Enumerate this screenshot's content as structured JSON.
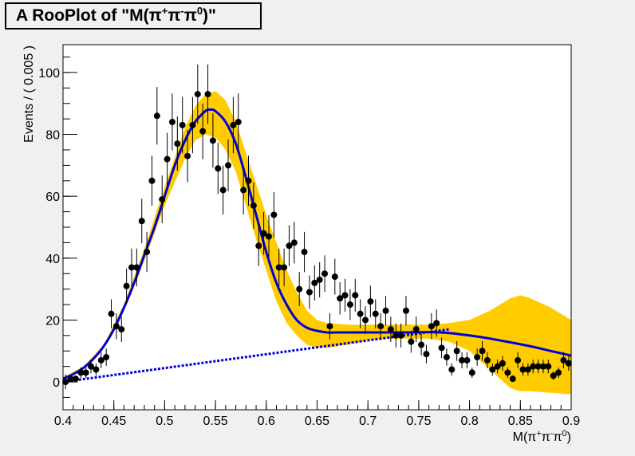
{
  "chart_data": {
    "type": "scatter",
    "title": "A RooPlot of \"M(π⁺π⁻π⁰)\"",
    "title_parts": [
      "A RooPlot of \"M(π",
      "+",
      "π",
      "-",
      "π",
      "0",
      ")\""
    ],
    "xlabel": "M(π⁺π⁻π⁰)",
    "xlabel_parts": [
      "M(π",
      "+",
      "π",
      "-",
      "π",
      "0",
      ")"
    ],
    "ylabel": "Events / ( 0.005 )",
    "xlim": [
      0.4,
      0.9
    ],
    "ylim": [
      -9,
      109
    ],
    "xticks": [
      "0.4",
      "0.45",
      "0.5",
      "0.55",
      "0.6",
      "0.65",
      "0.7",
      "0.75",
      "0.8",
      "0.85",
      "0.9"
    ],
    "yticks": [
      "0",
      "20",
      "40",
      "60",
      "80",
      "100"
    ],
    "grid": false,
    "colors": {
      "data": "#000000",
      "fit": "#0000d8",
      "band": "#ffcc00",
      "frame": "#000000",
      "background": "#f0f0f0",
      "plot_background": "#ffffff"
    },
    "series": [
      {
        "kind": "data-points-with-errors",
        "x": [
          0.4025,
          0.4075,
          0.4125,
          0.4175,
          0.4225,
          0.4275,
          0.4325,
          0.4375,
          0.4425,
          0.4475,
          0.4525,
          0.4575,
          0.4625,
          0.4675,
          0.4725,
          0.4775,
          0.4825,
          0.4875,
          0.4925,
          0.4975,
          0.5025,
          0.5075,
          0.5125,
          0.5175,
          0.5225,
          0.5275,
          0.5325,
          0.5375,
          0.5425,
          0.5475,
          0.5525,
          0.5575,
          0.5625,
          0.5675,
          0.5725,
          0.5775,
          0.5825,
          0.5875,
          0.5925,
          0.5975,
          0.6025,
          0.6075,
          0.6125,
          0.6175,
          0.6225,
          0.6275,
          0.6325,
          0.6375,
          0.6425,
          0.6475,
          0.6525,
          0.6575,
          0.6625,
          0.6675,
          0.6725,
          0.6775,
          0.6825,
          0.6875,
          0.6925,
          0.6975,
          0.7025,
          0.7075,
          0.7125,
          0.7175,
          0.7225,
          0.7275,
          0.7325,
          0.7375,
          0.7425,
          0.7475,
          0.7525,
          0.7575,
          0.7625,
          0.7675,
          0.7725,
          0.7775,
          0.7825,
          0.7875,
          0.7925,
          0.7975,
          0.8025,
          0.8075,
          0.8125,
          0.8175,
          0.8225,
          0.8275,
          0.8325,
          0.8375,
          0.8425,
          0.8475,
          0.8525,
          0.8575,
          0.8625,
          0.8675,
          0.8725,
          0.8775,
          0.8825,
          0.8875,
          0.8925,
          0.8975
        ],
        "y": [
          0,
          1,
          1,
          3,
          3,
          5,
          4,
          7,
          8,
          22,
          18,
          17,
          31,
          37,
          37,
          52,
          42,
          65,
          86,
          59,
          72,
          84,
          77,
          83,
          73,
          83,
          93,
          81,
          93,
          78,
          69,
          62,
          70,
          83,
          84,
          62,
          65,
          57,
          44,
          48,
          47,
          54,
          37,
          37,
          44,
          45,
          30,
          42,
          29,
          32,
          33,
          35,
          18,
          34,
          27,
          28,
          25,
          28,
          22,
          20,
          26,
          22,
          18,
          23,
          17,
          15,
          15,
          23,
          13,
          17,
          12,
          9,
          18,
          19,
          11,
          8,
          4,
          10,
          7,
          7,
          3,
          8,
          10,
          7,
          4,
          5,
          6,
          3,
          1,
          7,
          4,
          4,
          5,
          5,
          5,
          5,
          2,
          3,
          7,
          6
        ],
        "err": [
          2.4,
          1,
          1,
          1.7,
          1.7,
          2.2,
          2,
          2.6,
          2.8,
          4.7,
          4.2,
          4.1,
          5.6,
          6.1,
          6.1,
          7.2,
          6.5,
          8.1,
          9.3,
          7.7,
          8.5,
          9.2,
          8.8,
          9.1,
          8.5,
          9.1,
          9.6,
          9,
          9.6,
          8.8,
          8.3,
          7.9,
          8.4,
          9.1,
          9.2,
          7.9,
          8.1,
          7.5,
          6.6,
          6.9,
          6.9,
          7.3,
          6.1,
          6.1,
          6.6,
          6.7,
          5.5,
          6.5,
          5.4,
          5.7,
          5.7,
          5.9,
          4.2,
          5.8,
          5.2,
          5.3,
          5,
          5.3,
          4.7,
          4.5,
          5.1,
          4.7,
          4.2,
          4.8,
          4.1,
          3.9,
          3.9,
          4.8,
          3.6,
          4.1,
          3.5,
          3,
          4.2,
          4.4,
          3.3,
          2.8,
          2,
          3.2,
          2.6,
          2.6,
          1.7,
          2.8,
          3.2,
          2.6,
          2,
          2.2,
          2.4,
          1.7,
          1,
          2.6,
          2,
          2,
          2.2,
          2.2,
          2.2,
          2.2,
          1.4,
          1.7,
          2.6,
          2.4
        ]
      },
      {
        "kind": "fit-curve",
        "x": [
          0.4,
          0.41,
          0.42,
          0.43,
          0.44,
          0.45,
          0.46,
          0.47,
          0.48,
          0.49,
          0.5,
          0.51,
          0.52,
          0.53,
          0.54,
          0.545,
          0.55,
          0.56,
          0.57,
          0.58,
          0.59,
          0.6,
          0.61,
          0.62,
          0.63,
          0.64,
          0.65,
          0.66,
          0.67,
          0.68,
          0.69,
          0.7,
          0.72,
          0.74,
          0.76,
          0.78,
          0.8,
          0.82,
          0.84,
          0.86,
          0.88,
          0.9
        ],
        "y": [
          1,
          2.5,
          4.5,
          7.5,
          11.5,
          17,
          24,
          32,
          41,
          50,
          60,
          70,
          78,
          84,
          87.5,
          88,
          87.5,
          84,
          77,
          66,
          54,
          42,
          32,
          25,
          20,
          17.5,
          16.5,
          16,
          16,
          16,
          16,
          16,
          16,
          16,
          16.1,
          15.8,
          15,
          14,
          12.8,
          11.5,
          10,
          8.5
        ]
      },
      {
        "kind": "background-line",
        "x": [
          0.4,
          0.78
        ],
        "y": [
          0,
          17
        ]
      },
      {
        "kind": "error-band",
        "x": [
          0.4,
          0.42,
          0.44,
          0.46,
          0.48,
          0.5,
          0.52,
          0.53,
          0.54,
          0.55,
          0.56,
          0.57,
          0.58,
          0.59,
          0.6,
          0.61,
          0.62,
          0.63,
          0.64,
          0.65,
          0.66,
          0.68,
          0.7,
          0.72,
          0.74,
          0.76,
          0.78,
          0.8,
          0.82,
          0.84,
          0.85,
          0.86,
          0.88,
          0.9
        ],
        "upper": [
          1.5,
          5,
          12,
          25,
          43,
          63,
          82,
          89,
          93,
          94,
          91,
          84,
          74,
          64,
          54,
          45,
          36,
          29,
          23,
          20,
          19,
          18.5,
          18.5,
          18.5,
          18.5,
          18.5,
          19,
          20,
          23,
          27,
          28,
          27,
          24,
          20
        ],
        "lower": [
          0.5,
          4,
          11,
          23,
          39,
          57,
          72,
          78,
          80,
          79,
          75,
          68,
          57,
          46,
          36,
          26,
          19,
          15,
          12,
          11,
          11,
          12,
          13.5,
          14,
          14,
          14,
          13,
          10,
          4,
          -2,
          -3,
          -3,
          -3.5,
          -4
        ]
      }
    ]
  }
}
